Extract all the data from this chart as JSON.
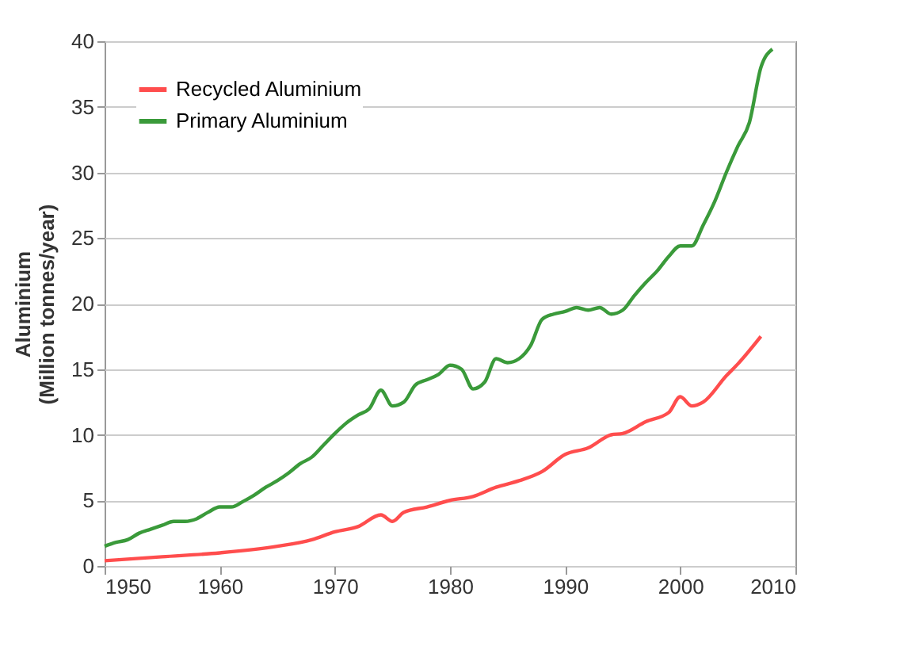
{
  "chart_data": {
    "type": "line",
    "ylabel": "Aluminium\n(Million tonnes/year)",
    "xlim": [
      1950,
      2010
    ],
    "xticks": [
      1950,
      1960,
      1970,
      1980,
      1990,
      2000,
      2010
    ],
    "ylim": [
      0,
      40
    ],
    "yticks": [
      0,
      5,
      10,
      15,
      20,
      25,
      30,
      35,
      40
    ],
    "grid": "y",
    "legend": "top left",
    "marker": "none",
    "line_style": "solid",
    "series": [
      {
        "name": "Recycled Aluminium",
        "color": "#ff4d4d",
        "x": [
          1950,
          1955,
          1960,
          1965,
          1968,
          1970,
          1972,
          1974,
          1975,
          1976,
          1978,
          1980,
          1982,
          1984,
          1986,
          1988,
          1990,
          1992,
          1994,
          1995,
          1997,
          1999,
          2000,
          2001,
          2002,
          2004,
          2005,
          2007
        ],
        "values": [
          0.4,
          0.7,
          1.0,
          1.5,
          2.0,
          2.6,
          3.0,
          3.9,
          3.4,
          4.1,
          4.5,
          5.0,
          5.3,
          6.0,
          6.5,
          7.2,
          8.5,
          9.0,
          10.0,
          10.1,
          11.0,
          11.7,
          12.9,
          12.2,
          12.5,
          14.5,
          15.4,
          17.5
        ]
      },
      {
        "name": "Primary Aluminium",
        "color": "#3a9a3a",
        "x": [
          1950,
          1951,
          1952,
          1953,
          1954,
          1955,
          1956,
          1957,
          1958,
          1959,
          1960,
          1961,
          1962,
          1963,
          1964,
          1965,
          1966,
          1967,
          1968,
          1969,
          1970,
          1971,
          1972,
          1973,
          1974,
          1975,
          1976,
          1977,
          1978,
          1979,
          1980,
          1981,
          1982,
          1983,
          1984,
          1985,
          1986,
          1987,
          1988,
          1989,
          1990,
          1991,
          1992,
          1993,
          1994,
          1995,
          1996,
          1997,
          1998,
          1999,
          2000,
          2001,
          2002,
          2003,
          2004,
          2005,
          2006,
          2007,
          2008
        ],
        "values": [
          1.5,
          1.8,
          2.0,
          2.5,
          2.8,
          3.1,
          3.4,
          3.4,
          3.6,
          4.1,
          4.5,
          4.5,
          4.9,
          5.4,
          6.0,
          6.5,
          7.1,
          7.8,
          8.3,
          9.2,
          10.1,
          10.9,
          11.5,
          12.0,
          13.4,
          12.2,
          12.5,
          13.8,
          14.2,
          14.6,
          15.3,
          15.0,
          13.5,
          14.0,
          15.8,
          15.5,
          15.8,
          16.8,
          18.8,
          19.2,
          19.4,
          19.7,
          19.5,
          19.7,
          19.2,
          19.5,
          20.6,
          21.6,
          22.5,
          23.6,
          24.4,
          24.4,
          26.0,
          27.8,
          30.0,
          32.0,
          33.8,
          38.0,
          39.4
        ]
      }
    ]
  }
}
